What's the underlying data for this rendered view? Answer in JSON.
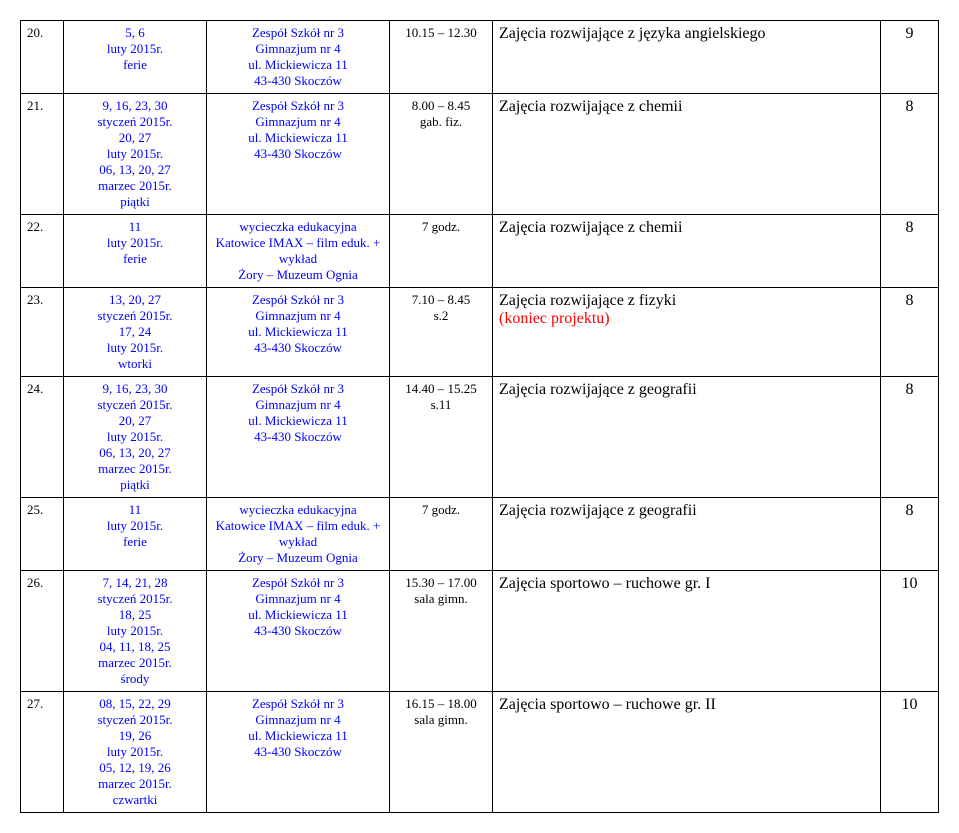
{
  "rows": [
    {
      "num": "20.",
      "dates": "5, 6\nluty 2015r.\nferie",
      "place": "Zespół Szkół nr 3\nGimnazjum nr 4\nul. Mickiewicza 11\n43-430 Skoczów",
      "time": "10.15 – 12.30",
      "subject": "Zajęcia rozwijające z języka angielskiego",
      "count": "9"
    },
    {
      "num": "21.",
      "dates": "9, 16, 23, 30\nstyczeń 2015r.\n20, 27\nluty 2015r.\n06, 13, 20, 27\nmarzec 2015r.\npiątki",
      "place": "Zespół Szkół nr 3\nGimnazjum nr 4\nul. Mickiewicza 11\n43-430 Skoczów",
      "time": "8.00 – 8.45\ngab. fiz.",
      "subject": "Zajęcia rozwijające z chemii",
      "count": "8"
    },
    {
      "num": "22.",
      "dates": "11\nluty 2015r.\nferie",
      "place": "wycieczka edukacyjna\nKatowice IMAX – film eduk. +\nwykład\nŻory – Muzeum Ognia",
      "time": "7 godz.",
      "subject": "Zajęcia rozwijające z chemii",
      "count": "8"
    },
    {
      "num": "23.",
      "dates": "13, 20, 27\nstyczeń 2015r.\n17, 24\nluty 2015r.\nwtorki",
      "place": "Zespół Szkół nr 3\nGimnazjum nr 4\nul. Mickiewicza 11\n43-430 Skoczów",
      "time": "7.10 – 8.45\ns.2",
      "subject_html": true,
      "subject": "Zajęcia rozwijające z fizyki",
      "subject_extra": "(koniec projektu)",
      "count": "8"
    },
    {
      "num": "24.",
      "dates": "9, 16, 23, 30\nstyczeń 2015r.\n20, 27\nluty 2015r.\n06, 13, 20, 27\nmarzec 2015r.\npiątki",
      "place": "Zespół Szkół nr 3\nGimnazjum nr 4\nul. Mickiewicza 11\n43-430 Skoczów",
      "time": "14.40 – 15.25\ns.11",
      "subject": "Zajęcia rozwijające z geografii",
      "count": "8"
    },
    {
      "num": "25.",
      "dates": "11\nluty 2015r.\nferie",
      "place": "wycieczka edukacyjna\nKatowice IMAX – film eduk. +\nwykład\nŻory – Muzeum Ognia",
      "time": "7 godz.",
      "subject": "Zajęcia rozwijające z geografii",
      "count": "8"
    },
    {
      "num": "26.",
      "dates": "7, 14, 21, 28\nstyczeń 2015r.\n18, 25\nluty 2015r.\n04, 11, 18, 25\nmarzec 2015r.\nśrody",
      "place": "Zespół Szkół nr 3\nGimnazjum nr 4\nul. Mickiewicza 11\n43-430 Skoczów",
      "time": "15.30 – 17.00\nsala gimn.",
      "subject": "Zajęcia sportowo – ruchowe gr. I",
      "count": "10"
    },
    {
      "num": "27.",
      "dates": "08, 15, 22, 29\nstyczeń 2015r.\n19, 26\nluty 2015r.\n05, 12, 19, 26\nmarzec 2015r.\nczwartki",
      "place": "Zespół Szkół nr 3\nGimnazjum nr 4\nul. Mickiewicza 11\n43-430 Skoczów",
      "time": "16.15 – 18.00\nsala gimn.",
      "subject": "Zajęcia sportowo – ruchowe gr. II",
      "count": "10"
    }
  ]
}
